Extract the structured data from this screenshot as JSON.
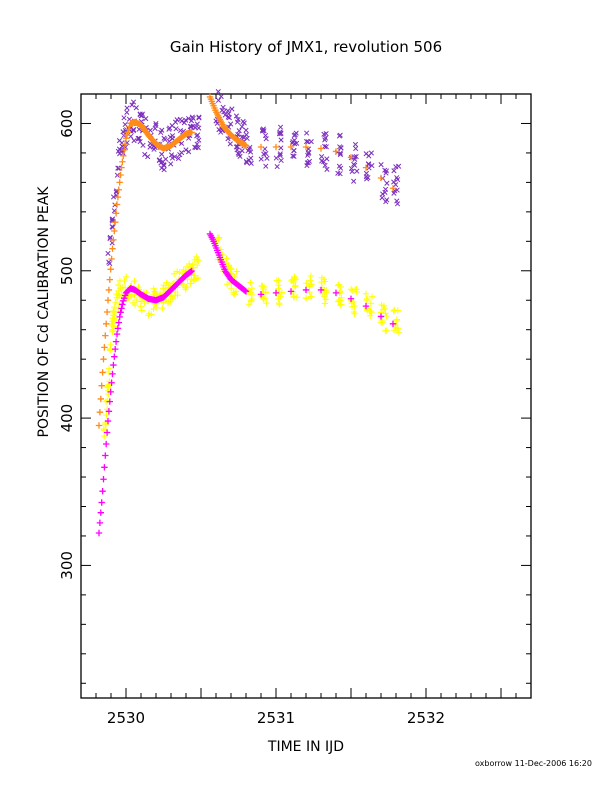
{
  "chart_data": {
    "type": "scatter",
    "title": "Gain History of JMX1, revolution 506",
    "xlabel": "TIME IN IJD",
    "ylabel": "POSITION OF Cd CALIBRATION PEAK",
    "xlim": [
      2529.7,
      2532.7
    ],
    "ylim": [
      210,
      620
    ],
    "x_ticks": [
      "2530",
      "2531",
      "2532"
    ],
    "y_ticks": [
      "300",
      "400",
      "500",
      "600"
    ],
    "grid": false,
    "series": [
      {
        "marker": "x",
        "color": "#7b2fbf",
        "x": [
          2529.88,
          2529.92,
          2529.96,
          2530.0,
          2530.05,
          2530.1,
          2530.15,
          2530.2,
          2530.25,
          2530.3,
          2530.35,
          2530.4,
          2530.45,
          2530.6,
          2530.65,
          2530.7,
          2530.75,
          2530.8,
          2530.9,
          2531.0,
          2531.1,
          2531.2,
          2531.3,
          2531.4,
          2531.5,
          2531.6,
          2531.7,
          2531.78
        ],
        "y": [
          500,
          545,
          580,
          598,
          603,
          594,
          590,
          586,
          582,
          586,
          590,
          594,
          590,
          612,
          605,
          598,
          592,
          586,
          585,
          584,
          585,
          584,
          583,
          580,
          575,
          570,
          563,
          557
        ]
      },
      {
        "marker": "+",
        "color": "#ffff00",
        "x": [
          2529.85,
          2529.88,
          2529.9,
          2529.92,
          2529.95,
          2530.0,
          2530.05,
          2530.1,
          2530.15,
          2530.2,
          2530.25,
          2530.3,
          2530.35,
          2530.4,
          2530.45,
          2530.6,
          2530.65,
          2530.7,
          2530.8,
          2530.9,
          2531.0,
          2531.1,
          2531.2,
          2531.3,
          2531.4,
          2531.5,
          2531.6,
          2531.7,
          2531.78
        ],
        "y": [
          388,
          420,
          450,
          470,
          484,
          488,
          486,
          482,
          478,
          480,
          484,
          488,
          492,
          496,
          498,
          520,
          505,
          494,
          486,
          484,
          486,
          487,
          488,
          487,
          485,
          481,
          476,
          470,
          465
        ]
      },
      {
        "name": "",
        "marker": "line",
        "color": "#ff8c1a",
        "x": [
          2529.82,
          2529.85,
          2529.88,
          2529.91,
          2529.94,
          2529.97,
          2530.0,
          2530.03,
          2530.06,
          2530.1,
          2530.15,
          2530.2,
          2530.25,
          2530.3,
          2530.35,
          2530.4,
          2530.44,
          2530.56,
          2530.6,
          2530.65,
          2530.7,
          2530.75,
          2530.8,
          2530.9,
          2531.0,
          2531.1,
          2531.2,
          2531.3,
          2531.4,
          2531.5,
          2531.6,
          2531.7,
          2531.78
        ],
        "y": [
          395,
          440,
          480,
          515,
          545,
          570,
          590,
          600,
          601,
          599,
          592,
          586,
          583,
          585,
          589,
          593,
          594,
          618,
          608,
          598,
          592,
          588,
          585,
          584,
          584,
          584,
          584,
          583,
          581,
          577,
          570,
          563,
          556
        ]
      },
      {
        "marker": "line",
        "color": "#ff00ff",
        "x": [
          2529.82,
          2529.84,
          2529.86,
          2529.88,
          2529.9,
          2529.92,
          2529.94,
          2529.96,
          2529.98,
          2530.0,
          2530.03,
          2530.06,
          2530.1,
          2530.15,
          2530.2,
          2530.25,
          2530.3,
          2530.35,
          2530.4,
          2530.44,
          2530.56,
          2530.58,
          2530.6,
          2530.63,
          2530.66,
          2530.7,
          2530.75,
          2530.8,
          2530.9,
          2531.0,
          2531.1,
          2531.2,
          2531.3,
          2531.4,
          2531.5,
          2531.6,
          2531.7,
          2531.78
        ],
        "y": [
          322,
          345,
          372,
          398,
          420,
          440,
          457,
          470,
          479,
          485,
          488,
          487,
          484,
          481,
          480,
          482,
          487,
          492,
          497,
          500,
          525,
          521,
          516,
          508,
          500,
          494,
          490,
          486,
          484,
          485,
          486,
          487,
          487,
          485,
          481,
          476,
          469,
          464
        ]
      }
    ],
    "footer": "oxborrow 11-Dec-2006 16:20"
  }
}
